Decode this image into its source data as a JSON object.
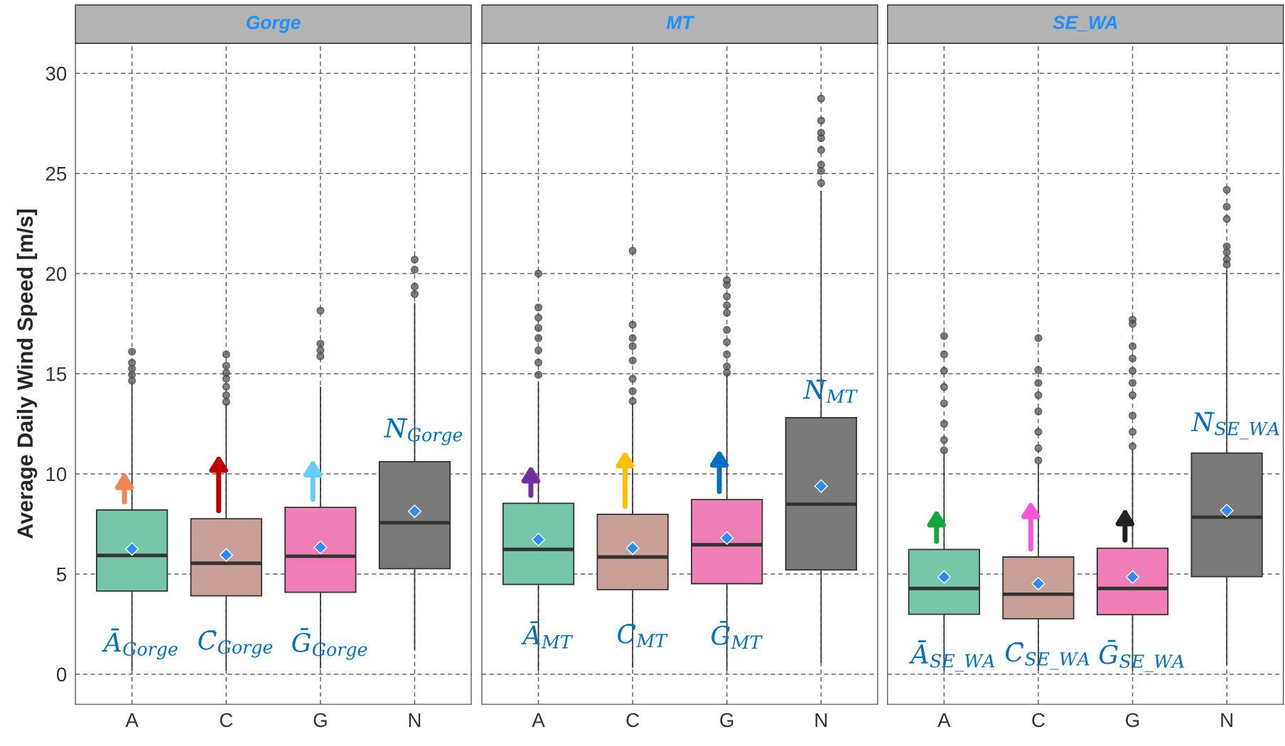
{
  "chart_data": [
    {
      "type": "box",
      "title": "Gorge",
      "ylabel": "Average Daily Wind Speed [m/s]",
      "categories": [
        "A",
        "C",
        "G",
        "N"
      ],
      "colors": [
        "#76c6aa",
        "#c9a097",
        "#ef7fb6",
        "#7a7a7a"
      ],
      "boxes": [
        {
          "low": 0.2,
          "q1": 4.15,
          "median": 5.93,
          "q3": 8.2,
          "high": 14.5,
          "mean": 6.25,
          "outliers": [
            16.1,
            15.55,
            15.25,
            14.95,
            14.65
          ]
        },
        {
          "low": 0.2,
          "q1": 3.91,
          "median": 5.54,
          "q3": 7.76,
          "high": 13.5,
          "mean": 5.95,
          "outliers": [
            15.97,
            15.4,
            15.05,
            14.75,
            14.35,
            13.93,
            13.6
          ]
        },
        {
          "low": 0.3,
          "q1": 4.09,
          "median": 5.89,
          "q3": 8.33,
          "high": 14.34,
          "mean": 6.33,
          "outliers": [
            18.15,
            16.5,
            16.17,
            15.87
          ]
        },
        {
          "low": 1.24,
          "q1": 5.27,
          "median": 7.56,
          "q3": 10.61,
          "high": 18.5,
          "mean": 8.13,
          "outliers": [
            20.7,
            20.2,
            19.35,
            18.98
          ]
        }
      ],
      "ylim": [
        -1.5,
        31.5
      ],
      "yticks": [
        0,
        5,
        10,
        15,
        20,
        25,
        30
      ],
      "grid": true,
      "annotations": [
        {
          "text": "Ā$_{Gorge}$",
          "x": "A",
          "y": 1.5
        },
        {
          "text": "C̄$_{Gorge}$",
          "x": "C",
          "y": 1.5
        },
        {
          "text": "Ḡ$_{Gorge}$",
          "x": "G",
          "y": 1.5
        },
        {
          "text": "N̄$_{Gorge}$",
          "x": "N",
          "y": 12.1
        }
      ]
    },
    {
      "type": "box",
      "title": "MT",
      "categories": [
        "A",
        "C",
        "G",
        "N"
      ],
      "colors": [
        "#76c6aa",
        "#c9a097",
        "#ef7fb6",
        "#7a7a7a"
      ],
      "boxes": [
        {
          "low": 0.2,
          "q1": 4.48,
          "median": 6.23,
          "q3": 8.53,
          "high": 14.54,
          "mean": 6.72,
          "outliers": [
            20.0,
            18.31,
            17.8,
            17.29,
            16.78,
            16.17,
            15.56,
            14.95
          ]
        },
        {
          "low": 0.33,
          "q1": 4.22,
          "median": 5.85,
          "q3": 7.98,
          "high": 13.52,
          "mean": 6.29,
          "outliers": [
            21.14,
            17.45,
            16.78,
            16.37,
            15.66,
            14.75,
            14.13,
            13.63
          ]
        },
        {
          "low": 0.2,
          "q1": 4.52,
          "median": 6.46,
          "q3": 8.72,
          "high": 14.85,
          "mean": 6.8,
          "outliers": [
            19.67,
            19.43,
            18.86,
            18.41,
            18.04,
            17.19,
            16.58,
            15.97,
            15.36,
            15.05
          ]
        },
        {
          "low": 0.59,
          "q1": 5.21,
          "median": 8.49,
          "q3": 12.81,
          "high": 24.11,
          "mean": 9.39,
          "outliers": [
            28.74,
            27.64,
            27.03,
            26.76,
            26.17,
            25.44,
            25.13,
            24.52
          ]
        }
      ],
      "ylim": [
        -1.5,
        31.5
      ],
      "yticks": [
        0,
        5,
        10,
        15,
        20,
        25,
        30
      ],
      "grid": true,
      "tick_labels": "x",
      "annotations": [
        {
          "text": "Ā$_{MT}$",
          "x": "A",
          "y": 1.9
        },
        {
          "text": "C̄$_{MT}$",
          "x": "C",
          "y": 1.9
        },
        {
          "text": "Ḡ$_{MT}$",
          "x": "G",
          "y": 1.9
        },
        {
          "text": "N̄$_{MT}$",
          "x": "N",
          "y": 14.1
        }
      ]
    },
    {
      "type": "box",
      "title": "SE_WA",
      "categories": [
        "A",
        "C",
        "G",
        "N"
      ],
      "colors": [
        "#76c6aa",
        "#c9a097",
        "#ef7fb6",
        "#7a7a7a"
      ],
      "boxes": [
        {
          "low": 0.2,
          "q1": 2.99,
          "median": 4.28,
          "q3": 6.23,
          "high": 10.98,
          "mean": 4.85,
          "outliers": [
            16.88,
            15.97,
            15.15,
            14.34,
            13.52,
            12.5,
            11.69,
            11.18
          ]
        },
        {
          "low": 0.2,
          "q1": 2.77,
          "median": 3.99,
          "q3": 5.85,
          "high": 10.47,
          "mean": 4.52,
          "outliers": [
            16.78,
            15.19,
            14.54,
            13.93,
            13.12,
            12.1,
            11.28,
            10.67
          ]
        },
        {
          "low": 0.2,
          "q1": 2.97,
          "median": 4.28,
          "q3": 6.29,
          "high": 11.18,
          "mean": 4.85,
          "outliers": [
            17.7,
            17.49,
            16.37,
            15.76,
            15.15,
            14.54,
            13.93,
            12.91,
            12.1,
            11.38
          ]
        },
        {
          "low": 0.49,
          "q1": 4.87,
          "median": 7.84,
          "q3": 11.04,
          "high": 20.14,
          "mean": 8.17,
          "outliers": [
            24.18,
            23.34,
            22.73,
            21.36,
            21.06,
            20.71,
            20.45
          ]
        }
      ],
      "ylim": [
        -1.5,
        31.5
      ],
      "yticks": [
        0,
        5,
        10,
        15,
        20,
        25,
        30
      ],
      "grid": true,
      "tick_labels": "x",
      "annotations": [
        {
          "text": "Ā$_{SE_WA}$",
          "x": "A",
          "y": 0.9
        },
        {
          "text": "C̄$_{SE_WA}$",
          "x": "C",
          "y": 0.9
        },
        {
          "text": "Ḡ$_{SE_WA}$",
          "x": "G",
          "y": 0.9
        },
        {
          "text": "N̄$_{SE_WA}$",
          "x": "N",
          "y": 12.4
        }
      ]
    }
  ]
}
